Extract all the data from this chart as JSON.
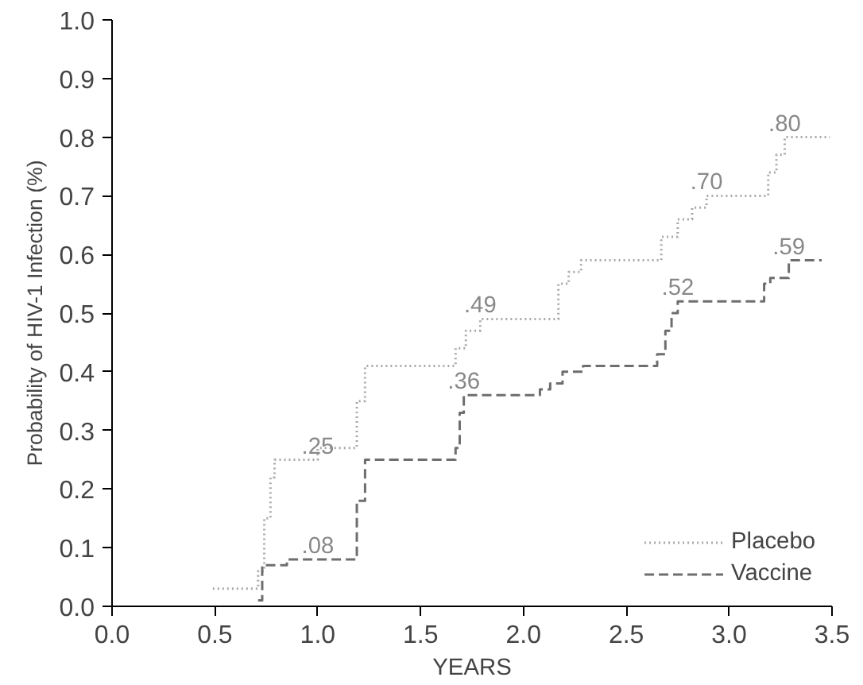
{
  "chart_data": {
    "type": "step",
    "xlabel": "YEARS",
    "ylabel": "Probability of HIV-1 Infection (%)",
    "xlim": [
      0,
      3.5
    ],
    "ylim": [
      0,
      1.0
    ],
    "xticks": [
      {
        "value": 0,
        "label": "0.0"
      },
      {
        "value": 0.5,
        "label": "0.5"
      },
      {
        "value": 1,
        "label": "1.0"
      },
      {
        "value": 1.5,
        "label": "1.5"
      },
      {
        "value": 2,
        "label": "2.0"
      },
      {
        "value": 2.5,
        "label": "2.5"
      },
      {
        "value": 3,
        "label": "3.0"
      },
      {
        "value": 3.5,
        "label": "3.5"
      }
    ],
    "yticks": [
      {
        "value": 0,
        "label": "0.0"
      },
      {
        "value": 0.1,
        "label": "0.1"
      },
      {
        "value": 0.2,
        "label": "0.2"
      },
      {
        "value": 0.3,
        "label": "0.3"
      },
      {
        "value": 0.4,
        "label": "0.4"
      },
      {
        "value": 0.5,
        "label": "0.5"
      },
      {
        "value": 0.6,
        "label": "0.6"
      },
      {
        "value": 0.7,
        "label": "0.7"
      },
      {
        "value": 0.8,
        "label": "0.8"
      },
      {
        "value": 0.9,
        "label": "0.9"
      },
      {
        "value": 1.0,
        "label": "1.0"
      }
    ],
    "grid": false,
    "legend": "bottom right",
    "marker": "none",
    "series": [
      {
        "name": "Placebo",
        "color": "#a8a8a8",
        "line_style": "dotted",
        "x": [
          0.49,
          0.71,
          0.74,
          0.77,
          0.79,
          1.0,
          1.19,
          1.23,
          1.67,
          1.72,
          1.79,
          2.17,
          2.22,
          2.28,
          2.67,
          2.75,
          2.82,
          2.89,
          3.19,
          3.23,
          3.27,
          3.49
        ],
        "values": [
          0.03,
          0.06,
          0.15,
          0.22,
          0.25,
          0.27,
          0.35,
          0.41,
          0.44,
          0.47,
          0.49,
          0.55,
          0.57,
          0.59,
          0.63,
          0.66,
          0.68,
          0.7,
          0.74,
          0.77,
          0.8,
          0.8
        ]
      },
      {
        "name": "Vaccine",
        "color": "#6e6e6e",
        "line_style": "dashed",
        "x": [
          0.71,
          0.73,
          0.78,
          0.85,
          1.19,
          1.23,
          1.67,
          1.69,
          1.71,
          2.08,
          2.13,
          2.19,
          2.29,
          2.65,
          2.69,
          2.72,
          2.75,
          3.17,
          3.2,
          3.29,
          3.45
        ],
        "values": [
          0.01,
          0.07,
          0.07,
          0.08,
          0.18,
          0.25,
          0.27,
          0.33,
          0.36,
          0.37,
          0.38,
          0.4,
          0.41,
          0.43,
          0.47,
          0.5,
          0.52,
          0.55,
          0.56,
          0.59,
          0.59
        ]
      }
    ],
    "annotations": [
      {
        "text": ".25",
        "x": 1.0,
        "y": 0.25
      },
      {
        "text": ".08",
        "x": 1.0,
        "y": 0.08
      },
      {
        "text": ".49",
        "x": 1.79,
        "y": 0.49
      },
      {
        "text": ".36",
        "x": 1.71,
        "y": 0.36
      },
      {
        "text": ".70",
        "x": 2.89,
        "y": 0.7
      },
      {
        "text": ".52",
        "x": 2.75,
        "y": 0.52
      },
      {
        "text": ".80",
        "x": 3.27,
        "y": 0.8
      },
      {
        "text": ".59",
        "x": 3.29,
        "y": 0.59
      }
    ]
  }
}
